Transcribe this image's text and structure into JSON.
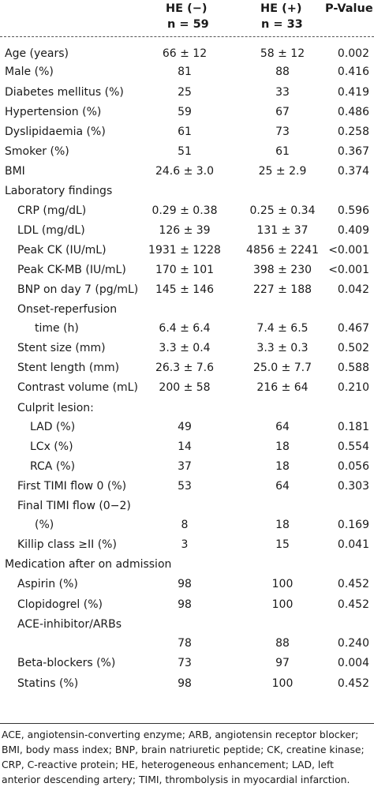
{
  "header": {
    "col1": "HE (−)",
    "col1_n": "n = 59",
    "col2": "HE (+)",
    "col2_n": "n = 33",
    "col3": "P-Value"
  },
  "rows": [
    {
      "label": "Age (years)",
      "c1": "66 ± 12",
      "c2": "58 ± 12",
      "p": "0.002"
    },
    {
      "label": "Male (%)",
      "c1": "81",
      "c2": "88",
      "p": "0.416"
    },
    {
      "label": "Diabetes mellitus (%)",
      "c1": "25",
      "c2": "33",
      "p": "0.419"
    },
    {
      "label": "Hypertension (%)",
      "c1": "59",
      "c2": "67",
      "p": "0.486"
    },
    {
      "label": "Dyslipidaemia (%)",
      "c1": "61",
      "c2": "73",
      "p": "0.258"
    },
    {
      "label": "Smoker (%)",
      "c1": "51",
      "c2": "61",
      "p": "0.367"
    },
    {
      "label": "BMI",
      "c1": "24.6 ± 3.0",
      "c2": "25 ± 2.9",
      "p": "0.374"
    },
    {
      "label": "Laboratory findings",
      "c1": "",
      "c2": "",
      "p": ""
    },
    {
      "label": "CRP (mg/dL)",
      "c1": "0.29 ± 0.38",
      "c2": "0.25 ± 0.34",
      "p": "0.596"
    },
    {
      "label": "LDL (mg/dL)",
      "c1": "126 ± 39",
      "c2": "131 ± 37",
      "p": "0.409"
    },
    {
      "label": "Peak CK (IU/mL)",
      "c1": "1931 ± 1228",
      "c2": "4856 ± 2241",
      "p": "<0.001"
    },
    {
      "label": "Peak CK-MB (IU/mL)",
      "c1": "170 ± 101",
      "c2": "398 ± 230",
      "p": "<0.001"
    },
    {
      "label": "BNP on day 7 (pg/mL)",
      "c1": "145 ± 146",
      "c2": "227 ± 188",
      "p": "0.042"
    },
    {
      "label": "Onset-reperfusion",
      "label2": "time (h)",
      "c1": "6.4 ± 6.4",
      "c2": "7.4 ± 6.5",
      "p": "0.467"
    },
    {
      "label": "Stent size (mm)",
      "c1": "3.3 ± 0.4",
      "c2": "3.3 ± 0.3",
      "p": "0.502"
    },
    {
      "label": "Stent length (mm)",
      "c1": "26.3 ± 7.6",
      "c2": "25.0 ± 7.7",
      "p": "0.588"
    },
    {
      "label": "Contrast volume (mL)",
      "c1": "200 ± 58",
      "c2": "216 ± 64",
      "p": "0.210"
    },
    {
      "label": "Culprit lesion:",
      "c1": "",
      "c2": "",
      "p": ""
    },
    {
      "label": "LAD (%)",
      "c1": "49",
      "c2": "64",
      "p": "0.181"
    },
    {
      "label": "LCx (%)",
      "c1": "14",
      "c2": "18",
      "p": "0.554"
    },
    {
      "label": "RCA (%)",
      "c1": "37",
      "c2": "18",
      "p": "0.056"
    },
    {
      "label": "First TIMI flow 0 (%)",
      "c1": "53",
      "c2": "64",
      "p": "0.303"
    },
    {
      "label": "Final TIMI flow (0−2)",
      "label2": "(%)",
      "c1": "8",
      "c2": "18",
      "p": "0.169"
    },
    {
      "label": "Killip class ≥II (%)",
      "c1": "3",
      "c2": "15",
      "p": "0.041"
    },
    {
      "label": "Medication after on admission",
      "c1": "",
      "c2": "",
      "p": ""
    },
    {
      "label": "Aspirin (%)",
      "c1": "98",
      "c2": "100",
      "p": "0.452"
    },
    {
      "label": "Clopidogrel (%)",
      "c1": "98",
      "c2": "100",
      "p": "0.452"
    },
    {
      "label": "ACE-inhibitor/ARBs",
      "c1": "78",
      "c2": "88",
      "p": "0.240"
    },
    {
      "label": "Beta-blockers (%)",
      "c1": "73",
      "c2": "97",
      "p": "0.004"
    },
    {
      "label": "Statins (%)",
      "c1": "98",
      "c2": "100",
      "p": "0.452"
    }
  ],
  "footnote": "ACE, angiotensin-converting enzyme; ARB, angiotensin receptor blocker; BMI, body mass index; BNP, brain natriuretic peptide; CK, creatine kinase; CRP, C-reactive protein; HE, heterogeneous enhancement; LAD, left anterior descending artery; TIMI, thrombolysis in myocardial infarction."
}
